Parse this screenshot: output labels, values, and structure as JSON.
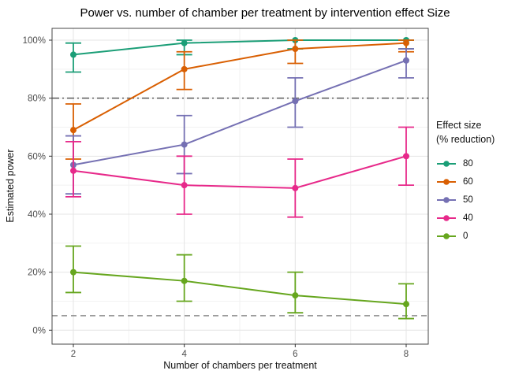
{
  "title": "Power vs. number of chamber per treatment by intervention effect Size",
  "axes": {
    "x": {
      "tick_labels": [
        "2",
        "4",
        "6",
        "8"
      ],
      "tick_values": [
        2,
        4,
        6,
        8
      ],
      "minor_values": [
        3,
        5,
        7
      ]
    },
    "y": {
      "tick_labels": [
        "0%",
        "20%",
        "40%",
        "60%",
        "80%",
        "100%"
      ],
      "tick_values": [
        0,
        20,
        40,
        60,
        80,
        100
      ],
      "minor_values": [
        10,
        30,
        50,
        70,
        90
      ]
    }
  },
  "legend": {
    "title_line1": "Effect size",
    "title_line2": "(% reduction)"
  },
  "chart_data": {
    "type": "line",
    "title": "Power vs. number of chamber per treatment by intervention effect Size",
    "xlabel": "Number of chambers per treatment",
    "ylabel": "Estimated power",
    "x": [
      2,
      4,
      6,
      8
    ],
    "ylim": [
      0,
      100
    ],
    "y_unit": "%",
    "grid": true,
    "legend_title": "Effect size (% reduction)",
    "legend_position": "right",
    "reference_lines": [
      {
        "value": 80,
        "style": "dotdash",
        "color": "#5a5a5a"
      },
      {
        "value": 5,
        "style": "dashed",
        "color": "#8c8c8c"
      }
    ],
    "series": [
      {
        "name": "80",
        "color": "#1B9E77",
        "values": [
          95,
          99,
          100,
          100
        ],
        "err_low": [
          89,
          95,
          97,
          97
        ],
        "err_high": [
          99,
          100,
          100,
          100
        ]
      },
      {
        "name": "60",
        "color": "#D95F02",
        "values": [
          69,
          90,
          97,
          99
        ],
        "err_low": [
          59,
          83,
          92,
          96
        ],
        "err_high": [
          78,
          96,
          100,
          100
        ]
      },
      {
        "name": "50",
        "color": "#7570B3",
        "values": [
          57,
          64,
          79,
          93
        ],
        "err_low": [
          47,
          54,
          70,
          87
        ],
        "err_high": [
          67,
          74,
          87,
          97
        ]
      },
      {
        "name": "40",
        "color": "#E7298A",
        "values": [
          55,
          50,
          49,
          60
        ],
        "err_low": [
          46,
          40,
          39,
          50
        ],
        "err_high": [
          65,
          60,
          59,
          70
        ]
      },
      {
        "name": "0",
        "color": "#66A61E",
        "values": [
          20,
          17,
          12,
          9
        ],
        "err_low": [
          13,
          10,
          6,
          4
        ],
        "err_high": [
          29,
          26,
          20,
          16
        ]
      }
    ]
  }
}
